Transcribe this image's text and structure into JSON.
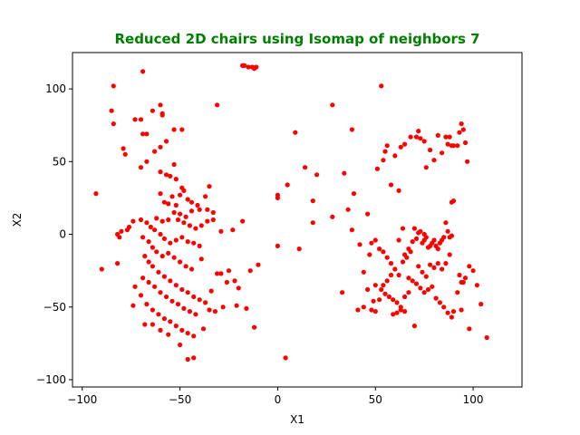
{
  "chart_data": {
    "type": "scatter",
    "title": "Reduced 2D chairs using Isomap of neighbors 7",
    "title_color": "#008000",
    "xlabel": "X1",
    "ylabel": "X2",
    "xlim": [
      -105,
      125
    ],
    "ylim": [
      -105,
      125
    ],
    "xticks": [
      -100,
      -50,
      0,
      50,
      100
    ],
    "yticks": [
      -100,
      -50,
      0,
      50,
      100
    ],
    "grid": false,
    "point_color": "#ff0000",
    "points": [
      [
        -69,
        112
      ],
      [
        -84,
        102
      ],
      [
        -85,
        85
      ],
      [
        -84,
        76
      ],
      [
        -79,
        59
      ],
      [
        -78,
        55
      ],
      [
        -73,
        79
      ],
      [
        -70,
        79
      ],
      [
        -69,
        69
      ],
      [
        -67,
        69
      ],
      [
        -64,
        85
      ],
      [
        -60,
        89
      ],
      [
        -59,
        83
      ],
      [
        -59,
        82
      ],
      [
        -53,
        72
      ],
      [
        -49,
        72
      ],
      [
        -31,
        89
      ],
      [
        -60,
        60
      ],
      [
        -57,
        64
      ],
      [
        -63,
        57
      ],
      [
        -70,
        46
      ],
      [
        -67,
        50
      ],
      [
        -60,
        43
      ],
      [
        -57,
        41
      ],
      [
        -53,
        48
      ],
      [
        -93,
        28
      ],
      [
        -55,
        40
      ],
      [
        -52,
        38
      ],
      [
        -49,
        32
      ],
      [
        -48,
        30
      ],
      [
        -50,
        27
      ],
      [
        -46,
        24
      ],
      [
        -44,
        22
      ],
      [
        -41,
        20
      ],
      [
        -37,
        26
      ],
      [
        -35,
        33
      ],
      [
        -60,
        28
      ],
      [
        -58,
        22
      ],
      [
        -56,
        21
      ],
      [
        -54,
        26
      ],
      [
        -52,
        20
      ],
      [
        -50,
        14
      ],
      [
        -47,
        12
      ],
      [
        -44,
        16
      ],
      [
        -40,
        17
      ],
      [
        -36,
        17
      ],
      [
        -33,
        15
      ],
      [
        -62,
        11
      ],
      [
        -59,
        9
      ],
      [
        -56,
        10
      ],
      [
        -53,
        15
      ],
      [
        -51,
        10
      ],
      [
        -48,
        8
      ],
      [
        -45,
        6
      ],
      [
        -42,
        4
      ],
      [
        -39,
        6
      ],
      [
        -36,
        9
      ],
      [
        -33,
        10
      ],
      [
        -29,
        2
      ],
      [
        -74,
        9
      ],
      [
        -76,
        5
      ],
      [
        -77,
        3
      ],
      [
        -80,
        2
      ],
      [
        -82,
        0
      ],
      [
        -81,
        -2
      ],
      [
        -70,
        10
      ],
      [
        -67,
        8
      ],
      [
        -65,
        5
      ],
      [
        -63,
        3
      ],
      [
        -60,
        0
      ],
      [
        -58,
        -3
      ],
      [
        -55,
        -6
      ],
      [
        -52,
        -4
      ],
      [
        -49,
        -2
      ],
      [
        -46,
        -5
      ],
      [
        -43,
        -6
      ],
      [
        -40,
        -8
      ],
      [
        -69,
        -2
      ],
      [
        -66,
        -5
      ],
      [
        -64,
        -9
      ],
      [
        -62,
        -12
      ],
      [
        -59,
        -15
      ],
      [
        -56,
        -13
      ],
      [
        -53,
        -16
      ],
      [
        -50,
        -19
      ],
      [
        -47,
        -22
      ],
      [
        -44,
        -24
      ],
      [
        -68,
        -15
      ],
      [
        -66,
        -19
      ],
      [
        -64,
        -22
      ],
      [
        -61,
        -26
      ],
      [
        -58,
        -29
      ],
      [
        -55,
        -32
      ],
      [
        -52,
        -35
      ],
      [
        -49,
        -38
      ],
      [
        -46,
        -40
      ],
      [
        -43,
        -43
      ],
      [
        -40,
        -45
      ],
      [
        -37,
        -47
      ],
      [
        -69,
        -30
      ],
      [
        -66,
        -33
      ],
      [
        -63,
        -36
      ],
      [
        -60,
        -40
      ],
      [
        -57,
        -43
      ],
      [
        -54,
        -46
      ],
      [
        -51,
        -48
      ],
      [
        -48,
        -51
      ],
      [
        -45,
        -53
      ],
      [
        -42,
        -55
      ],
      [
        -70,
        -42
      ],
      [
        -67,
        -48
      ],
      [
        -64,
        -52
      ],
      [
        -61,
        -55
      ],
      [
        -58,
        -58
      ],
      [
        -55,
        -60
      ],
      [
        -52,
        -63
      ],
      [
        -49,
        -66
      ],
      [
        -46,
        -68
      ],
      [
        -43,
        -70
      ],
      [
        -74,
        -49
      ],
      [
        -68,
        -62
      ],
      [
        -64,
        -62
      ],
      [
        -60,
        -66
      ],
      [
        -56,
        -69
      ],
      [
        -50,
        -76
      ],
      [
        -46,
        -86
      ],
      [
        -43,
        -85
      ],
      [
        -38,
        -65
      ],
      [
        -35,
        -52
      ],
      [
        -32,
        -53
      ],
      [
        -28,
        -50
      ],
      [
        -31,
        -27
      ],
      [
        -29,
        -27
      ],
      [
        -25,
        -25
      ],
      [
        -20,
        -37
      ],
      [
        -21,
        -49
      ],
      [
        -16,
        -51
      ],
      [
        -12,
        -64
      ],
      [
        -14,
        -25
      ],
      [
        -10,
        -21
      ],
      [
        -23,
        3
      ],
      [
        -18,
        116
      ],
      [
        -17,
        116
      ],
      [
        -15,
        115
      ],
      [
        -13,
        115
      ],
      [
        -12,
        114
      ],
      [
        -11,
        115
      ],
      [
        -18,
        9
      ],
      [
        -22,
        -32
      ],
      [
        -90,
        -24
      ],
      [
        -82,
        -20
      ],
      [
        -73,
        -36
      ],
      [
        -39,
        -17
      ],
      [
        -34,
        -39
      ],
      [
        -26,
        -33
      ],
      [
        0,
        27
      ],
      [
        0,
        25
      ],
      [
        5,
        34
      ],
      [
        9,
        70
      ],
      [
        14,
        46
      ],
      [
        18,
        23
      ],
      [
        20,
        41
      ],
      [
        18,
        8
      ],
      [
        0,
        -8
      ],
      [
        4,
        -85
      ],
      [
        11,
        -10
      ],
      [
        28,
        89
      ],
      [
        28,
        12
      ],
      [
        33,
        -40
      ],
      [
        34,
        42
      ],
      [
        36,
        17
      ],
      [
        38,
        72
      ],
      [
        38,
        3
      ],
      [
        39,
        28
      ],
      [
        42,
        -7
      ],
      [
        46,
        14
      ],
      [
        48,
        -52
      ],
      [
        50,
        -53
      ],
      [
        51,
        45
      ],
      [
        53,
        102
      ],
      [
        54,
        51
      ],
      [
        55,
        57
      ],
      [
        56,
        61
      ],
      [
        58,
        34
      ],
      [
        60,
        54
      ],
      [
        62,
        30
      ],
      [
        63,
        60
      ],
      [
        65,
        62
      ],
      [
        68,
        67
      ],
      [
        71,
        67
      ],
      [
        72,
        71
      ],
      [
        73,
        66
      ],
      [
        75,
        64
      ],
      [
        76,
        46
      ],
      [
        78,
        58
      ],
      [
        80,
        51
      ],
      [
        82,
        68
      ],
      [
        84,
        56
      ],
      [
        86,
        67
      ],
      [
        87,
        62
      ],
      [
        88,
        67
      ],
      [
        89,
        61
      ],
      [
        90,
        61
      ],
      [
        92,
        61
      ],
      [
        93,
        70
      ],
      [
        94,
        76
      ],
      [
        95,
        72
      ],
      [
        96,
        63
      ],
      [
        97,
        50
      ],
      [
        89,
        22
      ],
      [
        90,
        23
      ],
      [
        44,
        -26
      ],
      [
        47,
        -14
      ],
      [
        48,
        -6
      ],
      [
        50,
        -4
      ],
      [
        52,
        -10
      ],
      [
        54,
        -12
      ],
      [
        56,
        -16
      ],
      [
        58,
        -20
      ],
      [
        60,
        -24
      ],
      [
        62,
        -28
      ],
      [
        64,
        -19
      ],
      [
        66,
        -16
      ],
      [
        68,
        -12
      ],
      [
        70,
        4
      ],
      [
        72,
        1
      ],
      [
        74,
        -6
      ],
      [
        75,
        -4
      ],
      [
        76,
        -2
      ],
      [
        77,
        -9
      ],
      [
        78,
        -8
      ],
      [
        79,
        -6
      ],
      [
        80,
        -4
      ],
      [
        81,
        -8
      ],
      [
        82,
        -10
      ],
      [
        83,
        -6
      ],
      [
        84,
        -4
      ],
      [
        85,
        -2
      ],
      [
        86,
        8
      ],
      [
        87,
        2
      ],
      [
        88,
        -2
      ],
      [
        89,
        -1
      ],
      [
        72,
        -22
      ],
      [
        74,
        -26
      ],
      [
        76,
        -29
      ],
      [
        78,
        -21
      ],
      [
        80,
        -23
      ],
      [
        82,
        -20
      ],
      [
        84,
        -24
      ],
      [
        50,
        -35
      ],
      [
        53,
        -38
      ],
      [
        55,
        -41
      ],
      [
        57,
        -43
      ],
      [
        59,
        -45
      ],
      [
        61,
        -47
      ],
      [
        63,
        -50
      ],
      [
        65,
        -53
      ],
      [
        67,
        -30
      ],
      [
        69,
        -32
      ],
      [
        71,
        -34
      ],
      [
        73,
        -37
      ],
      [
        75,
        -40
      ],
      [
        77,
        -38
      ],
      [
        79,
        -36
      ],
      [
        81,
        -44
      ],
      [
        83,
        -47
      ],
      [
        85,
        -50
      ],
      [
        87,
        -54
      ],
      [
        89,
        -57
      ],
      [
        90,
        -53
      ],
      [
        92,
        -40
      ],
      [
        94,
        -33
      ],
      [
        96,
        -30
      ],
      [
        98,
        -22
      ],
      [
        100,
        -25
      ],
      [
        102,
        -35
      ],
      [
        104,
        -48
      ],
      [
        107,
        -71
      ],
      [
        70,
        -63
      ],
      [
        98,
        -65
      ],
      [
        94,
        -52
      ],
      [
        65,
        -14
      ],
      [
        67,
        -10
      ],
      [
        69,
        -5
      ],
      [
        71,
        -3
      ],
      [
        73,
        2
      ],
      [
        75,
        0
      ],
      [
        64,
        4
      ],
      [
        62,
        -4
      ],
      [
        58,
        -28
      ],
      [
        56,
        -32
      ],
      [
        54,
        -35
      ],
      [
        52,
        -45
      ],
      [
        49,
        -46
      ],
      [
        46,
        -38
      ],
      [
        44,
        -50
      ],
      [
        41,
        -52
      ],
      [
        59,
        -55
      ],
      [
        61,
        -54
      ],
      [
        63,
        -52
      ],
      [
        65,
        -43
      ],
      [
        67,
        -40
      ],
      [
        93,
        -28
      ],
      [
        95,
        -33
      ],
      [
        88,
        -14
      ],
      [
        86,
        -20
      ]
    ]
  }
}
